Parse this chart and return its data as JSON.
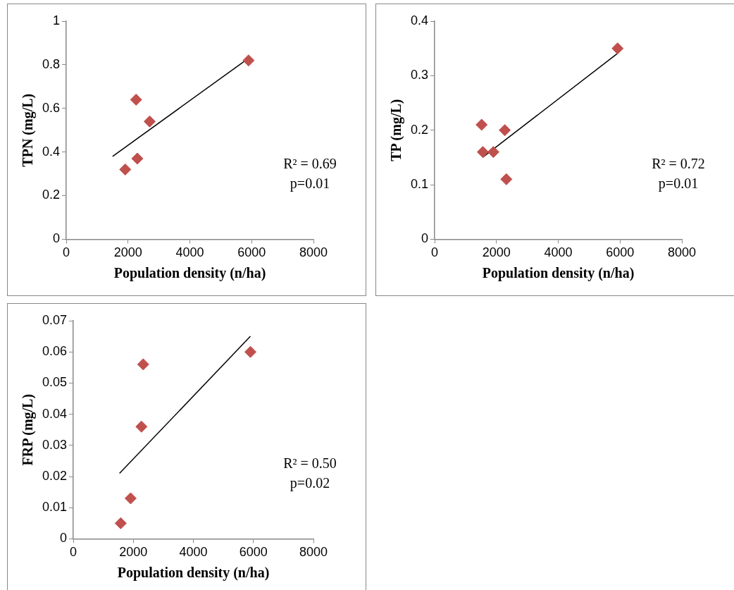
{
  "chart_data": [
    {
      "type": "scatter",
      "xlabel": "Population density (n/ha)",
      "ylabel": "TPN (mg/L)",
      "x": [
        1910,
        2260,
        2300,
        2700,
        5900
      ],
      "series": [
        {
          "color": "#c0504d",
          "marker": "diamond",
          "values": [
            0.32,
            0.64,
            0.37,
            0.54,
            0.82
          ]
        },
        {
          "type": "line",
          "color": "#000000",
          "marker": "none",
          "x": [
            1500,
            5900
          ],
          "values": [
            0.38,
            0.83
          ]
        }
      ],
      "xlim": [
        0,
        8000
      ],
      "xticks": [
        0,
        2000,
        4000,
        6000,
        8000
      ],
      "ylim": [
        0,
        1
      ],
      "yticks": [
        0,
        0.2,
        0.4,
        0.6,
        0.8,
        1
      ],
      "annotations": [
        "R² = 0.69",
        "p=0.01"
      ]
    },
    {
      "type": "scatter",
      "xlabel": "Population density (n/ha)",
      "ylabel": "TP (mg/L)",
      "x": [
        1520,
        1560,
        1900,
        2270,
        2320,
        5920
      ],
      "series": [
        {
          "color": "#c0504d",
          "marker": "diamond",
          "values": [
            0.21,
            0.16,
            0.16,
            0.2,
            0.11,
            0.35
          ]
        },
        {
          "type": "line",
          "color": "#000000",
          "marker": "none",
          "x": [
            1550,
            5900
          ],
          "values": [
            0.15,
            0.34
          ]
        }
      ],
      "xlim": [
        0,
        8000
      ],
      "xticks": [
        0,
        2000,
        4000,
        6000,
        8000
      ],
      "ylim": [
        0,
        0.4
      ],
      "yticks": [
        0,
        0.1,
        0.2,
        0.3,
        0.4
      ],
      "annotations": [
        "R² = 0.72",
        "p=0.01"
      ]
    },
    {
      "type": "scatter",
      "xlabel": "Population density (n/ha)",
      "ylabel": "FRP (mg/L)",
      "x": [
        1580,
        1910,
        2270,
        2330,
        5900
      ],
      "series": [
        {
          "color": "#c0504d",
          "marker": "diamond",
          "values": [
            0.005,
            0.013,
            0.036,
            0.056,
            0.06
          ]
        },
        {
          "type": "line",
          "color": "#000000",
          "marker": "none",
          "x": [
            1540,
            5900
          ],
          "values": [
            0.021,
            0.065
          ]
        }
      ],
      "xlim": [
        0,
        8000
      ],
      "xticks": [
        0,
        2000,
        4000,
        6000,
        8000
      ],
      "ylim": [
        0,
        0.07
      ],
      "yticks": [
        0,
        0.01,
        0.02,
        0.03,
        0.04,
        0.05,
        0.06,
        0.07
      ],
      "annotations": [
        "R² = 0.50",
        "p=0.02"
      ]
    }
  ]
}
